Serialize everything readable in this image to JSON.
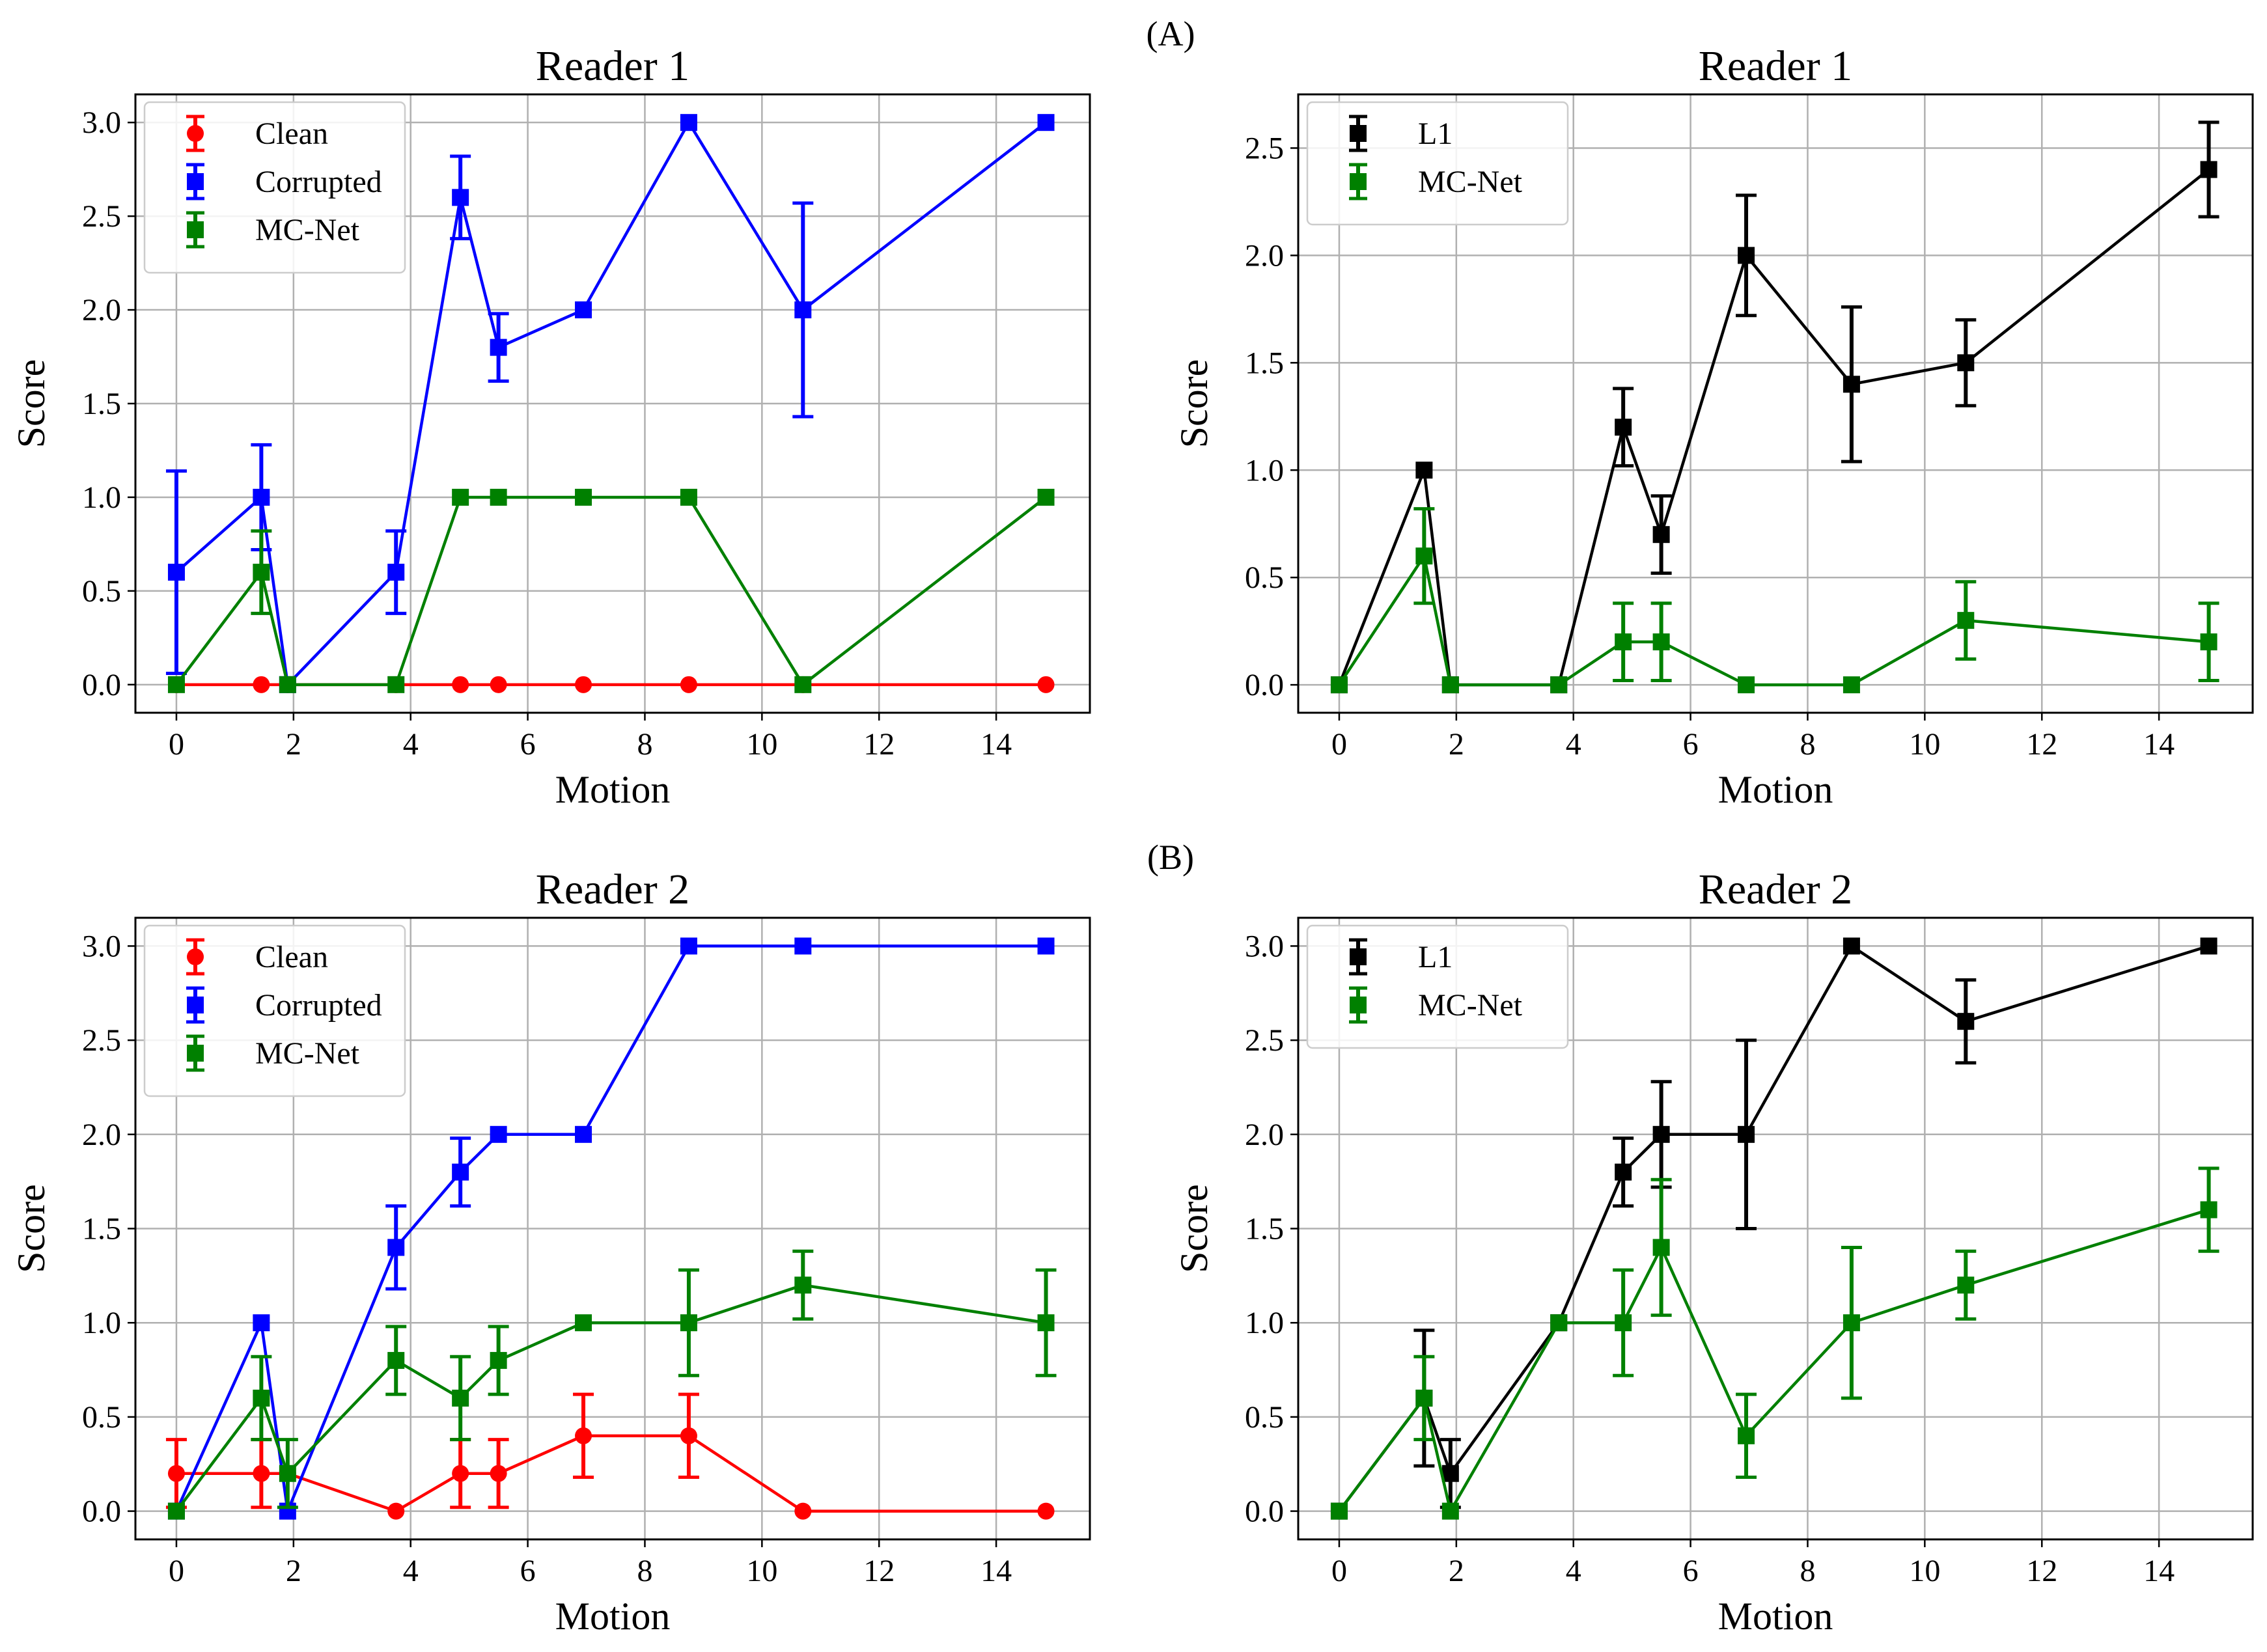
{
  "panel_tags": {
    "a": "(A)",
    "b": "(B)"
  },
  "colors": {
    "clean": "#ff0000",
    "corrupted": "#0000ff",
    "mcnet": "#008000",
    "l1": "#000000",
    "grid": "#b0b0b0"
  },
  "chart_data": [
    {
      "type": "line",
      "title": "Reader 1",
      "xlabel": "Motion",
      "ylabel": "Score",
      "xlim": [
        -0.7,
        15.6
      ],
      "ylim": [
        -0.15,
        3.15
      ],
      "xticks": [
        0,
        2,
        4,
        6,
        8,
        10,
        12,
        14
      ],
      "yticks": [
        0,
        0.5,
        1,
        1.5,
        2,
        2.5,
        3
      ],
      "ytick_labels": [
        "0.0",
        "0.5",
        "1.0",
        "1.5",
        "2.0",
        "2.5",
        "3.0"
      ],
      "grid": true,
      "legend": "upper-left",
      "x": [
        0,
        1.45,
        1.9,
        3.75,
        4.85,
        5.5,
        6.95,
        8.75,
        10.7,
        14.85
      ],
      "series": [
        {
          "name": "Clean",
          "color": "#ff0000",
          "marker": "circle",
          "values": [
            0,
            0,
            0,
            0,
            0,
            0,
            0,
            0,
            0,
            0
          ],
          "errors": [
            0,
            0,
            0,
            0,
            0,
            0,
            0,
            0,
            0,
            0
          ]
        },
        {
          "name": "Corrupted",
          "color": "#0000ff",
          "marker": "square",
          "values": [
            0.6,
            1.0,
            0,
            0.6,
            2.6,
            1.8,
            2.0,
            3.0,
            2.0,
            3.0
          ],
          "errors": [
            0.54,
            0.28,
            0,
            0.22,
            0.22,
            0.18,
            0,
            0,
            0.57,
            0
          ]
        },
        {
          "name": "MC-Net",
          "color": "#008000",
          "marker": "square",
          "values": [
            0,
            0.6,
            0,
            0,
            1.0,
            1.0,
            1.0,
            1.0,
            0,
            1.0
          ],
          "errors": [
            0,
            0.22,
            0,
            0,
            0,
            0,
            0,
            0,
            0,
            0
          ]
        }
      ]
    },
    {
      "type": "line",
      "title": "Reader 1",
      "xlabel": "Motion",
      "ylabel": "Score",
      "xlim": [
        -0.7,
        15.6
      ],
      "ylim": [
        -0.13,
        2.75
      ],
      "xticks": [
        0,
        2,
        4,
        6,
        8,
        10,
        12,
        14
      ],
      "yticks": [
        0,
        0.5,
        1,
        1.5,
        2,
        2.5
      ],
      "ytick_labels": [
        "0.0",
        "0.5",
        "1.0",
        "1.5",
        "2.0",
        "2.5"
      ],
      "grid": true,
      "legend": "upper-left",
      "x": [
        0,
        1.45,
        1.9,
        3.75,
        4.85,
        5.5,
        6.95,
        8.75,
        10.7,
        14.85
      ],
      "series": [
        {
          "name": "L1",
          "color": "#000000",
          "marker": "square",
          "values": [
            0,
            1.0,
            0,
            0,
            1.2,
            0.7,
            2.0,
            1.4,
            1.5,
            2.4
          ],
          "errors": [
            0,
            0,
            0,
            0,
            0.18,
            0.18,
            0.28,
            0.36,
            0.2,
            0.22
          ]
        },
        {
          "name": "MC-Net",
          "color": "#008000",
          "marker": "square",
          "values": [
            0,
            0.6,
            0,
            0,
            0.2,
            0.2,
            0,
            0,
            0.3,
            0.2
          ],
          "errors": [
            0,
            0.22,
            0,
            0,
            0.18,
            0.18,
            0,
            0,
            0.18,
            0.18
          ]
        }
      ]
    },
    {
      "type": "line",
      "title": "Reader 2",
      "xlabel": "Motion",
      "ylabel": "Score",
      "xlim": [
        -0.7,
        15.6
      ],
      "ylim": [
        -0.15,
        3.15
      ],
      "xticks": [
        0,
        2,
        4,
        6,
        8,
        10,
        12,
        14
      ],
      "yticks": [
        0,
        0.5,
        1,
        1.5,
        2,
        2.5,
        3
      ],
      "ytick_labels": [
        "0.0",
        "0.5",
        "1.0",
        "1.5",
        "2.0",
        "2.5",
        "3.0"
      ],
      "grid": true,
      "legend": "upper-left",
      "x": [
        0,
        1.45,
        1.9,
        3.75,
        4.85,
        5.5,
        6.95,
        8.75,
        10.7,
        14.85
      ],
      "series": [
        {
          "name": "Clean",
          "color": "#ff0000",
          "marker": "circle",
          "values": [
            0.2,
            0.2,
            0.2,
            0,
            0.2,
            0.2,
            0.4,
            0.4,
            0,
            0
          ],
          "errors": [
            0.18,
            0.18,
            0,
            0,
            0.18,
            0.18,
            0.22,
            0.22,
            0,
            0
          ]
        },
        {
          "name": "Corrupted",
          "color": "#0000ff",
          "marker": "square",
          "values": [
            0,
            1.0,
            0,
            1.4,
            1.8,
            2.0,
            2.0,
            3.0,
            3.0,
            3.0
          ],
          "errors": [
            0,
            0,
            0,
            0.22,
            0.18,
            0,
            0,
            0,
            0,
            0
          ]
        },
        {
          "name": "MC-Net",
          "color": "#008000",
          "marker": "square",
          "values": [
            0,
            0.6,
            0.2,
            0.8,
            0.6,
            0.8,
            1.0,
            1.0,
            1.2,
            1.0
          ],
          "errors": [
            0,
            0.22,
            0.18,
            0.18,
            0.22,
            0.18,
            0,
            0.28,
            0.18,
            0.28
          ]
        }
      ]
    },
    {
      "type": "line",
      "title": "Reader 2",
      "xlabel": "Motion",
      "ylabel": "Score",
      "xlim": [
        -0.7,
        15.6
      ],
      "ylim": [
        -0.15,
        3.15
      ],
      "xticks": [
        0,
        2,
        4,
        6,
        8,
        10,
        12,
        14
      ],
      "yticks": [
        0,
        0.5,
        1,
        1.5,
        2,
        2.5,
        3
      ],
      "ytick_labels": [
        "0.0",
        "0.5",
        "1.0",
        "1.5",
        "2.0",
        "2.5",
        "3.0"
      ],
      "grid": true,
      "legend": "upper-left",
      "x": [
        0,
        1.45,
        1.9,
        3.75,
        4.85,
        5.5,
        6.95,
        8.75,
        10.7,
        14.85
      ],
      "series": [
        {
          "name": "L1",
          "color": "#000000",
          "marker": "square",
          "values": [
            0,
            0.6,
            0.2,
            1.0,
            1.8,
            2.0,
            2.0,
            3.0,
            2.6,
            3.0
          ],
          "errors": [
            0,
            0.36,
            0.18,
            0,
            0.18,
            0.28,
            0.5,
            0,
            0.22,
            0
          ]
        },
        {
          "name": "MC-Net",
          "color": "#008000",
          "marker": "square",
          "values": [
            0,
            0.6,
            0,
            1.0,
            1.0,
            1.4,
            0.4,
            1.0,
            1.2,
            1.6
          ],
          "errors": [
            0,
            0.22,
            0,
            0,
            0.28,
            0.36,
            0.22,
            0.4,
            0.18,
            0.22
          ]
        }
      ]
    }
  ]
}
